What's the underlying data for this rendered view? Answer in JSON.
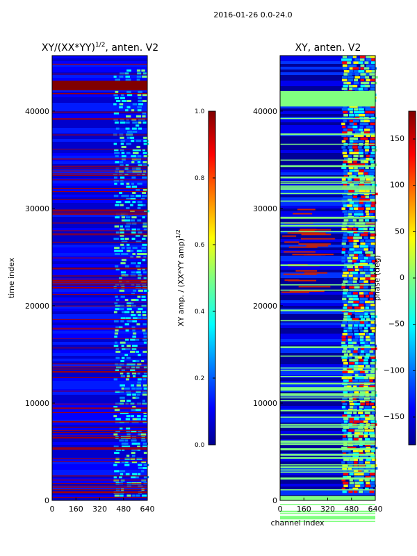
{
  "chart_data": {
    "suptitle": "2016-01-26 0.0-24.0",
    "panels": [
      {
        "type": "heatmap",
        "title_main": "XY/(XX*YY)",
        "title_exp": "1/2",
        "title_suffix": ", anten. V2",
        "ylabel": "time index",
        "xlabel": "",
        "xticks": [
          0,
          160,
          320,
          480,
          640
        ],
        "yticks": [
          0,
          10000,
          20000,
          30000,
          40000
        ],
        "xlim": [
          0,
          640
        ],
        "ylim": [
          0,
          45700
        ],
        "colorbar": {
          "label": "XY amp. / (XX*YY amp)",
          "label_exp": "1/2",
          "range": [
            0,
            1
          ],
          "ticks": [
            "0.0",
            "0.2",
            "0.4",
            "0.6",
            "0.8",
            "1.0"
          ]
        }
      },
      {
        "type": "heatmap",
        "title": "XY, anten. V2",
        "ylabel": "",
        "xlabel": "channel index",
        "xticks": [
          0,
          160,
          320,
          480,
          640
        ],
        "yticks": [
          0,
          10000,
          20000,
          30000,
          40000
        ],
        "xlim": [
          0,
          640
        ],
        "ylim": [
          0,
          45700
        ],
        "colorbar": {
          "label": "phase (deg)",
          "range": [
            -180,
            180
          ],
          "ticks": [
            "150",
            "100",
            "50",
            "0",
            "−50",
            "−100",
            "−150"
          ],
          "tick_values": [
            150,
            100,
            50,
            0,
            -50,
            -100,
            -150
          ]
        }
      }
    ]
  },
  "colors": {
    "jet_dark_blue": "#00008f",
    "jet_blue": "#0000ff",
    "jet_cyan": "#00ffff",
    "jet_green": "#80ff80",
    "jet_yellow": "#ffff00",
    "jet_red": "#ff0000",
    "jet_dark_red": "#800000"
  }
}
